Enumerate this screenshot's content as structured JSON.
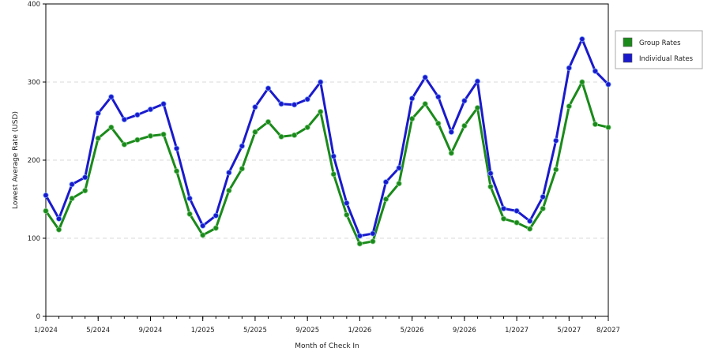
{
  "chart_data": {
    "type": "line",
    "xlabel": "Month of Check In",
    "ylabel": "Lowest Average Rate (USD)",
    "ylim": [
      0,
      400
    ],
    "yticks": [
      "0",
      "100",
      "200",
      "300",
      "400"
    ],
    "ytick_values": [
      0,
      100,
      200,
      300,
      400
    ],
    "xtick_labels": [
      "1/2024",
      "5/2024",
      "9/2024",
      "1/2025",
      "5/2025",
      "9/2025",
      "1/2026",
      "5/2026",
      "9/2026",
      "1/2027",
      "5/2027",
      "8/2027"
    ],
    "xtick_months": [
      "2024-01",
      "2024-05",
      "2024-09",
      "2025-01",
      "2025-05",
      "2025-09",
      "2026-01",
      "2026-05",
      "2026-09",
      "2027-01",
      "2027-05",
      "2027-08"
    ],
    "x_range": [
      "2024-01",
      "2027-08"
    ],
    "grid": "horizontal dashed",
    "legend_position": "right",
    "x": [
      "2024-01",
      "2024-02",
      "2024-03",
      "2024-04",
      "2024-05",
      "2024-06",
      "2024-07",
      "2024-08",
      "2024-09",
      "2024-10",
      "2024-11",
      "2024-12",
      "2025-01",
      "2025-02",
      "2025-03",
      "2025-04",
      "2025-05",
      "2025-06",
      "2025-07",
      "2025-08",
      "2025-09",
      "2025-10",
      "2025-11",
      "2025-12",
      "2026-01",
      "2026-02",
      "2026-03",
      "2026-04",
      "2026-05",
      "2026-06",
      "2026-07",
      "2026-08",
      "2026-09",
      "2026-10",
      "2026-11",
      "2026-12",
      "2027-01",
      "2027-02",
      "2027-03",
      "2027-04",
      "2027-05",
      "2027-06",
      "2027-07",
      "2027-08"
    ],
    "series": [
      {
        "name": "Group Rates",
        "color": "#1a8a1a",
        "values": [
          135,
          111,
          151,
          161,
          228,
          242,
          220,
          226,
          231,
          233,
          186,
          131,
          104,
          113,
          161,
          189,
          236,
          249,
          230,
          232,
          242,
          262,
          182,
          130,
          93,
          96,
          150,
          170,
          253,
          272,
          247,
          209,
          244,
          267,
          166,
          125,
          120,
          112,
          138,
          188,
          269,
          300,
          246,
          242
        ]
      },
      {
        "name": "Individual Rates",
        "color": "#1a1acc",
        "values": [
          155,
          125,
          169,
          178,
          260,
          281,
          252,
          258,
          265,
          272,
          215,
          151,
          116,
          129,
          184,
          218,
          268,
          292,
          272,
          271,
          278,
          300,
          205,
          145,
          103,
          106,
          172,
          190,
          279,
          306,
          281,
          236,
          276,
          301,
          183,
          138,
          135,
          122,
          153,
          225,
          318,
          355,
          314,
          297
        ]
      }
    ]
  }
}
